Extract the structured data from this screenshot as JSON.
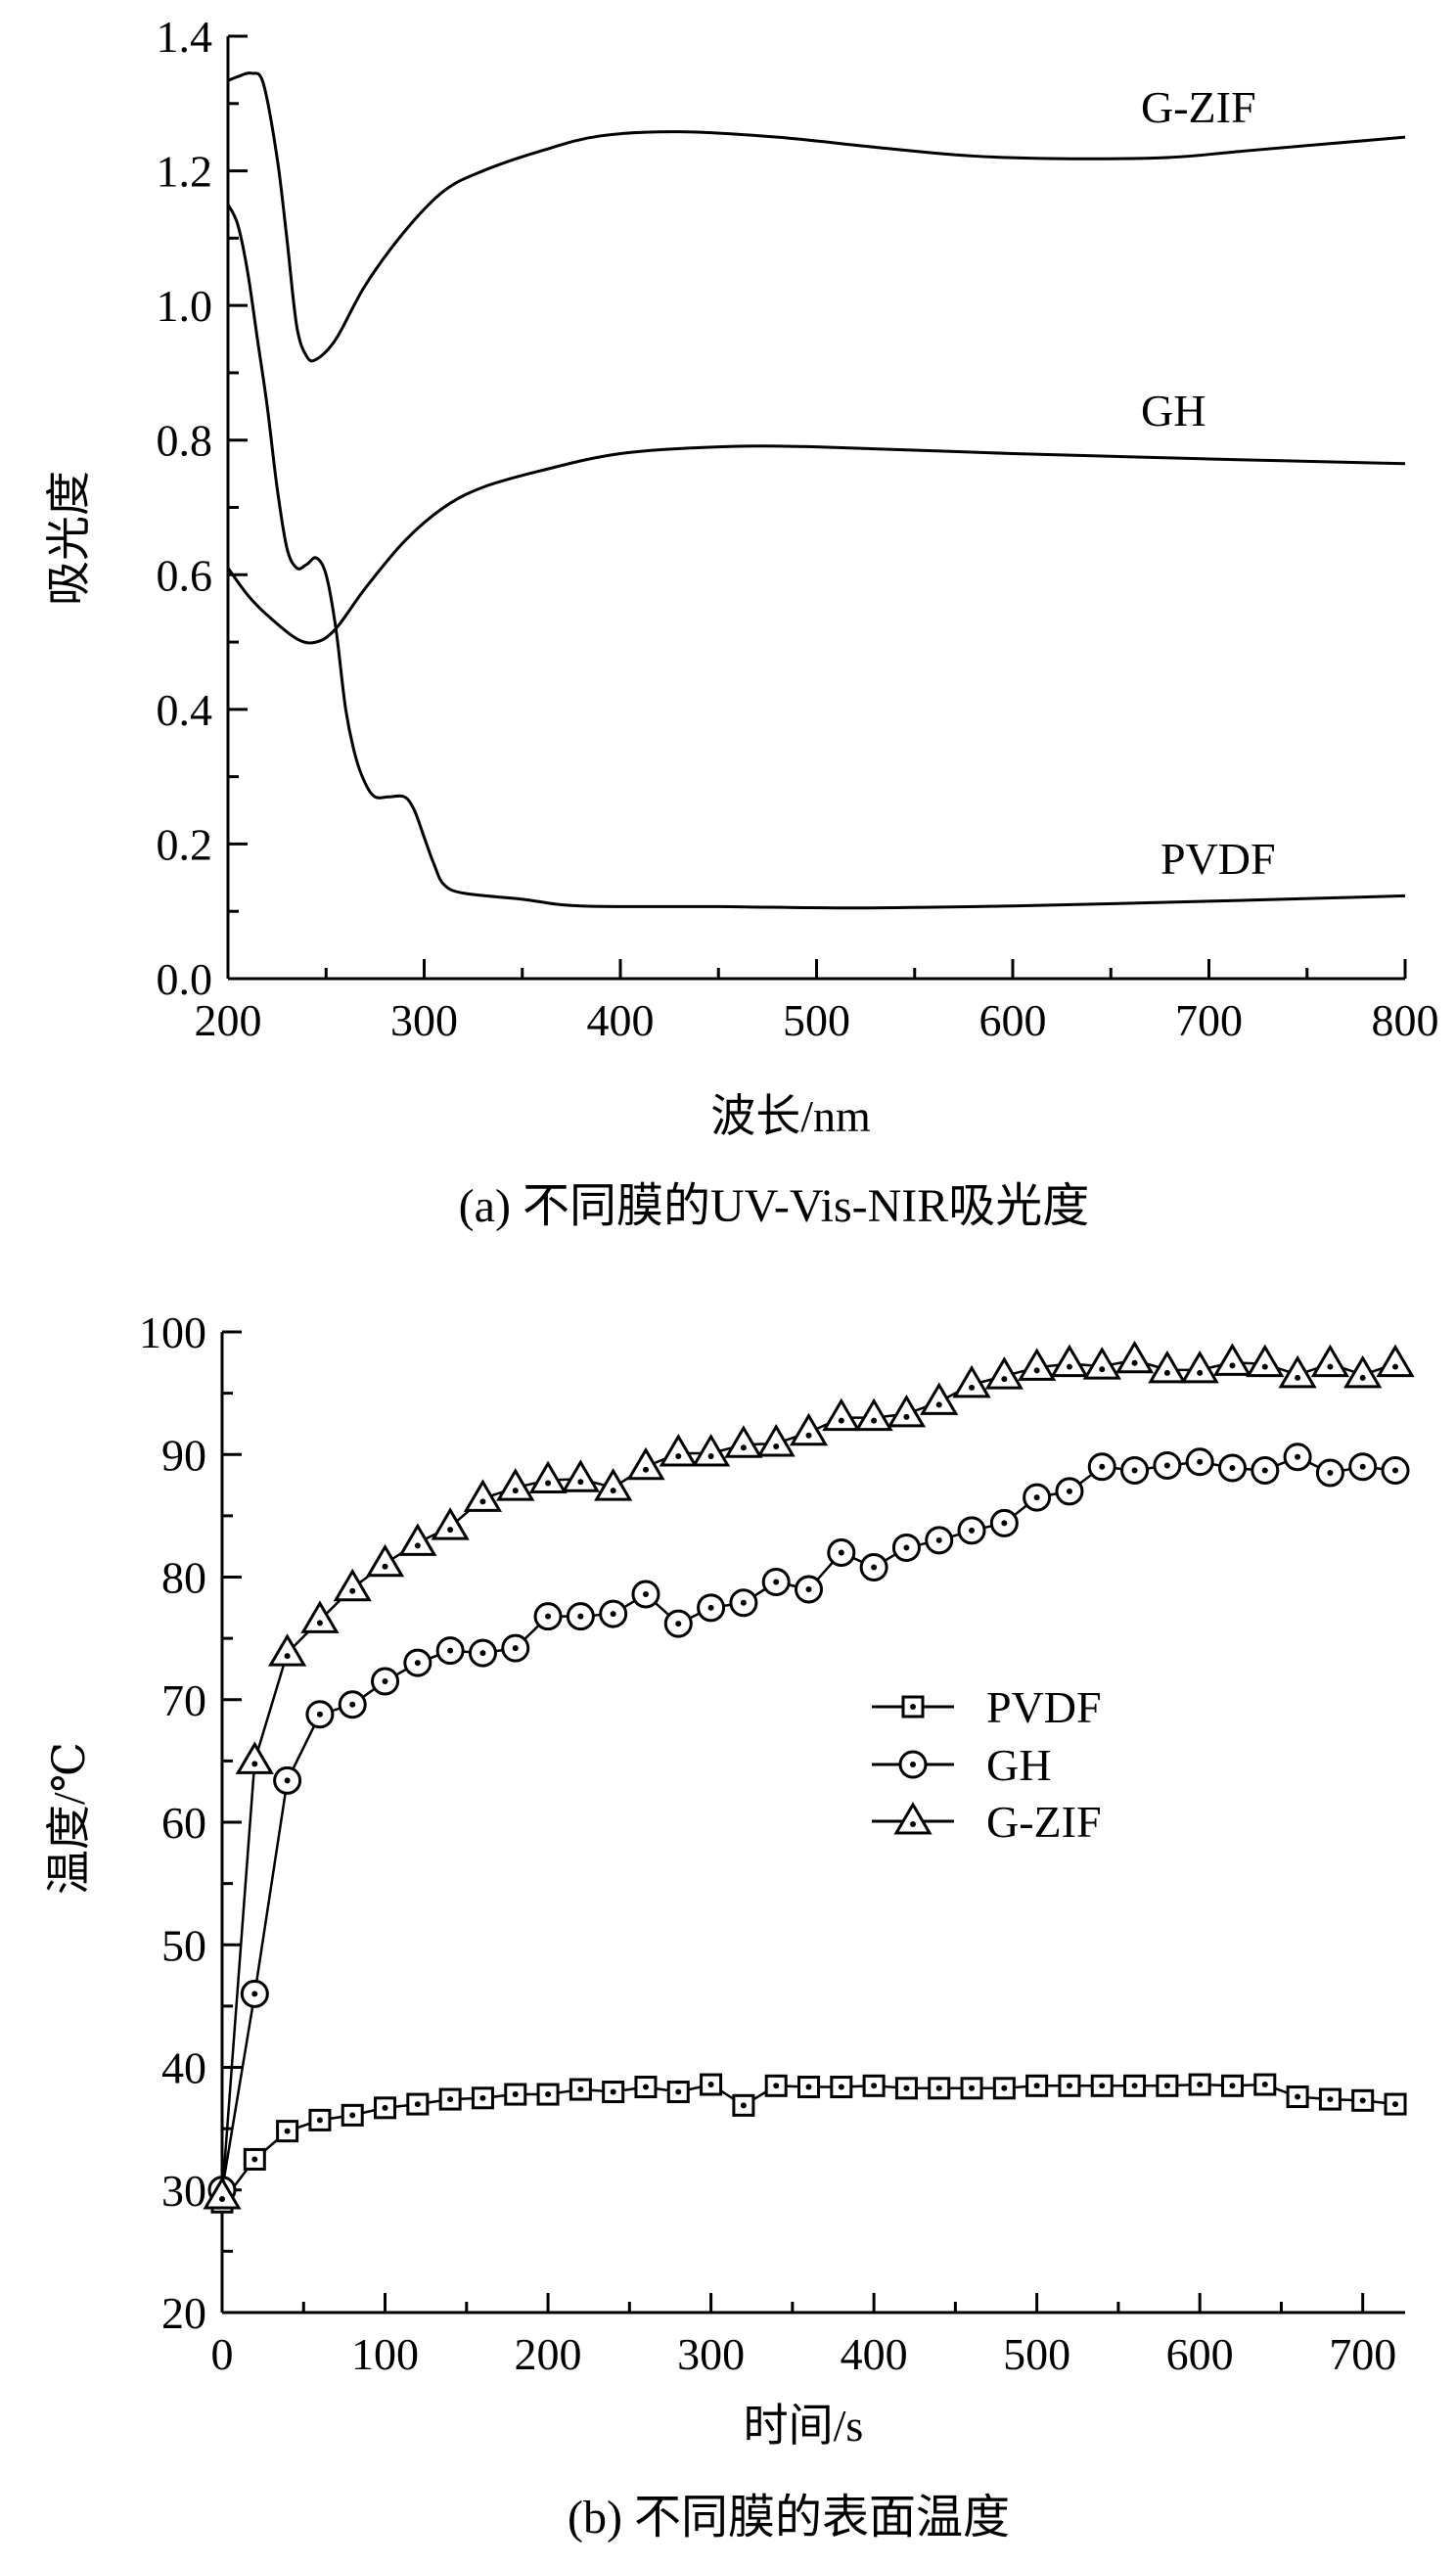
{
  "chart_data": [
    {
      "type": "line",
      "title": "",
      "caption": "(a) 不同膜的UV-Vis-NIR吸光度",
      "xlabel": "波长/nm",
      "ylabel": "吸光度",
      "xlim": [
        200,
        800
      ],
      "ylim": [
        0,
        1.4
      ],
      "xticks": [
        200,
        300,
        400,
        500,
        600,
        700,
        800
      ],
      "yticks": [
        0.0,
        0.2,
        0.4,
        0.6,
        0.8,
        1.0,
        1.2,
        1.4
      ],
      "xtick_labels": [
        "200",
        "300",
        "400",
        "500",
        "600",
        "700",
        "800"
      ],
      "ytick_labels": [
        "0.0",
        "0.2",
        "0.4",
        "0.6",
        "0.8",
        "1.0",
        "1.2",
        "1.4"
      ],
      "grid": false,
      "series": [
        {
          "name": "G-ZIF",
          "x": [
            200,
            205,
            212,
            218,
            225,
            230,
            235,
            240,
            245,
            255,
            270,
            290,
            310,
            330,
            360,
            390,
            430,
            480,
            530,
            580,
            630,
            680,
            720,
            800
          ],
          "y": [
            1.334,
            1.34,
            1.345,
            1.33,
            1.22,
            1.1,
            0.97,
            0.925,
            0.92,
            0.95,
            1.03,
            1.11,
            1.17,
            1.2,
            1.23,
            1.252,
            1.258,
            1.25,
            1.235,
            1.222,
            1.218,
            1.22,
            1.23,
            1.25
          ]
        },
        {
          "name": "GH",
          "x": [
            200,
            210,
            220,
            235,
            245,
            255,
            270,
            290,
            310,
            330,
            360,
            400,
            450,
            500,
            600,
            700,
            800
          ],
          "y": [
            0.61,
            0.57,
            0.54,
            0.505,
            0.5,
            0.52,
            0.58,
            0.65,
            0.7,
            0.73,
            0.755,
            0.78,
            0.79,
            0.79,
            0.78,
            0.772,
            0.765
          ]
        },
        {
          "name": "PVDF",
          "x": [
            200,
            205,
            210,
            215,
            220,
            225,
            230,
            235,
            240,
            245,
            250,
            255,
            260,
            265,
            270,
            275,
            282,
            290,
            295,
            300,
            305,
            310,
            320,
            350,
            380,
            450,
            520,
            600,
            700,
            800
          ],
          "y": [
            1.15,
            1.12,
            1.05,
            0.95,
            0.85,
            0.73,
            0.64,
            0.61,
            0.615,
            0.625,
            0.6,
            0.52,
            0.4,
            0.33,
            0.29,
            0.27,
            0.27,
            0.27,
            0.25,
            0.21,
            0.17,
            0.14,
            0.127,
            0.118,
            0.108,
            0.107,
            0.105,
            0.108,
            0.115,
            0.123
          ]
        }
      ]
    },
    {
      "type": "line",
      "title": "",
      "caption": "(b) 不同膜的表面温度",
      "xlabel": "时间/s",
      "ylabel": "温度/℃",
      "xlim": [
        0,
        726
      ],
      "ylim": [
        20,
        100
      ],
      "xticks": [
        0,
        100,
        200,
        300,
        400,
        500,
        600,
        700
      ],
      "yticks": [
        20,
        30,
        40,
        50,
        60,
        70,
        80,
        90,
        100
      ],
      "xtick_labels": [
        "0",
        "100",
        "200",
        "300",
        "400",
        "500",
        "600",
        "700"
      ],
      "ytick_labels": [
        "20",
        "30",
        "40",
        "50",
        "60",
        "70",
        "80",
        "90",
        "100"
      ],
      "grid": false,
      "legend": "center-right",
      "x": [
        0,
        20,
        40,
        60,
        80,
        100,
        120,
        140,
        160,
        180,
        200,
        220,
        240,
        260,
        280,
        300,
        320,
        340,
        360,
        380,
        400,
        420,
        440,
        460,
        480,
        500,
        520,
        540,
        560,
        580,
        600,
        620,
        640,
        660,
        680,
        700,
        720
      ],
      "series": [
        {
          "name": "PVDF",
          "marker": "square",
          "values": [
            29,
            32.5,
            34.8,
            35.7,
            36.1,
            36.7,
            37.0,
            37.4,
            37.5,
            37.8,
            37.8,
            38.2,
            38.0,
            38.4,
            38.0,
            38.6,
            36.9,
            38.5,
            38.4,
            38.4,
            38.5,
            38.3,
            38.3,
            38.3,
            38.3,
            38.5,
            38.5,
            38.5,
            38.5,
            38.5,
            38.6,
            38.5,
            38.6,
            37.6,
            37.4,
            37.3,
            37.0
          ]
        },
        {
          "name": "GH",
          "marker": "circle",
          "values": [
            30,
            46,
            63.4,
            68.8,
            69.6,
            71.5,
            73,
            74,
            73.8,
            74.2,
            76.8,
            76.8,
            77,
            78.6,
            76.2,
            77.5,
            77.9,
            79.6,
            79,
            82,
            80.8,
            82.4,
            83,
            83.8,
            84.4,
            86.5,
            87,
            89,
            88.7,
            89.1,
            89.4,
            88.9,
            88.7,
            89.8,
            88.5,
            89,
            88.7
          ]
        },
        {
          "name": "G-ZIF",
          "marker": "triangle",
          "values": [
            29.5,
            65,
            73.8,
            76.5,
            79.1,
            81.1,
            82.8,
            84.1,
            86.4,
            87.3,
            87.9,
            88,
            87.3,
            89,
            90.1,
            90.1,
            90.8,
            90.9,
            91.8,
            93,
            93,
            93.3,
            94.3,
            95.7,
            96.4,
            97.1,
            97.4,
            97.2,
            97.7,
            96.9,
            96.9,
            97.5,
            97.4,
            96.5,
            97.4,
            96.5,
            97.4
          ]
        }
      ]
    }
  ]
}
